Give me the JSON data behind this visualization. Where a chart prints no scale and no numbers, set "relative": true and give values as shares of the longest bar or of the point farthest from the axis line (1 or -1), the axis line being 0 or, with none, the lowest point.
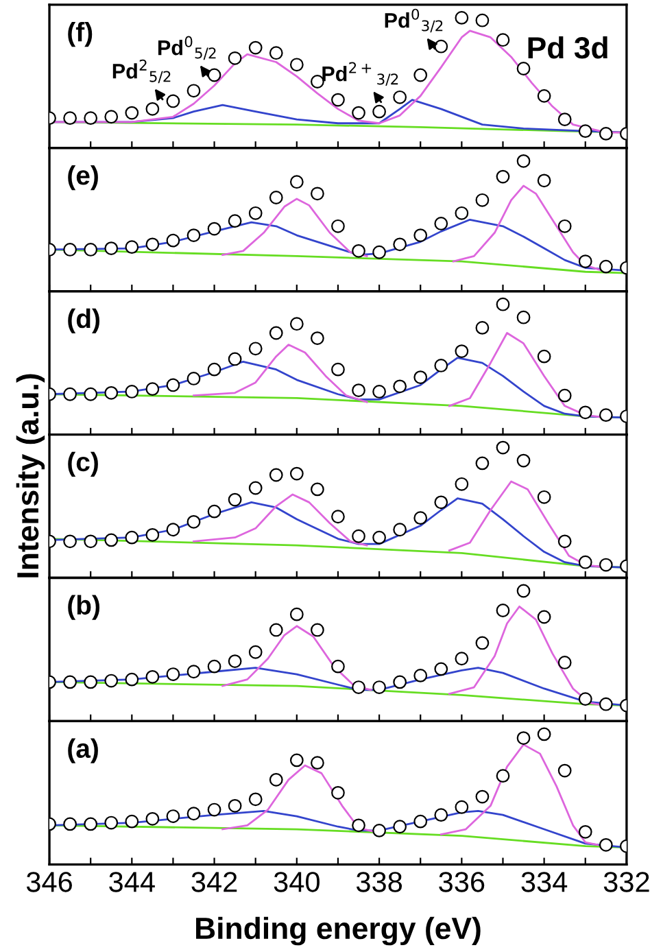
{
  "chart_data": [
    {
      "type": "scatter",
      "relative": true,
      "tick_labels": false,
      "xlim": [
        346,
        332
      ],
      "xticks": [
        346,
        {
          "value": 345,
          "label": null
        },
        344,
        {
          "value": 343,
          "label": null
        },
        342,
        {
          "value": 341,
          "label": null
        },
        340,
        {
          "value": 339,
          "label": null
        },
        338,
        {
          "value": 337,
          "label": null
        },
        336,
        {
          "value": 335,
          "label": null
        },
        334,
        {
          "value": 333,
          "label": null
        },
        332
      ],
      "annotations": [
        "(f)",
        "Pd 3d",
        {
          "text": "Pd$^{2}$$_{5/2}$",
          "x": 343.2,
          "y": 0.35
        },
        {
          "text": "Pd$^{0}$$_{5/2}$",
          "x": 342.1,
          "y": 0.53
        },
        {
          "text": "Pd$^{2+}$$_{3/2}$",
          "x": 337.9,
          "y": 0.33
        },
        {
          "text": "Pd$^{0}$$_{3/2}$",
          "x": 336.6,
          "y": 0.74
        }
      ],
      "x": [
        346,
        345.5,
        345,
        344.5,
        344,
        343.5,
        343,
        342.5,
        342,
        341.5,
        341,
        340.5,
        340,
        339.5,
        339,
        338.5,
        338,
        337.5,
        337,
        336.5,
        336,
        335.5,
        335,
        334.5,
        334,
        333.5,
        333,
        332.5,
        332
      ],
      "series": [
        {
          "marker": "circle",
          "color": "#000000",
          "values": [
            0.23,
            0.23,
            0.23,
            0.24,
            0.27,
            0.3,
            0.36,
            0.44,
            0.56,
            0.69,
            0.77,
            0.73,
            0.64,
            0.51,
            0.37,
            0.27,
            0.28,
            0.39,
            0.56,
            0.78,
            1.0,
            0.98,
            0.83,
            0.61,
            0.4,
            0.22,
            0.13,
            0.11,
            0.11
          ]
        },
        {
          "type": "line",
          "color": "#66dd22",
          "x": [
            346,
            340,
            337,
            333.5,
            332
          ],
          "values": [
            0.2,
            0.18,
            0.16,
            0.13,
            0.12
          ]
        },
        {
          "type": "line",
          "color": "#3344cc",
          "x": [
            346,
            344,
            343,
            342.5,
            341.8,
            341,
            340,
            339,
            338,
            337.5,
            337.2,
            336.5,
            335.5,
            334.5,
            333,
            332
          ],
          "values": [
            0.2,
            0.2,
            0.23,
            0.28,
            0.33,
            0.28,
            0.22,
            0.19,
            0.19,
            0.3,
            0.37,
            0.3,
            0.18,
            0.15,
            0.13,
            0.12
          ]
        },
        {
          "type": "line",
          "color": "#dd66dd",
          "x": [
            346,
            344,
            343,
            342.5,
            342,
            341.5,
            341.2,
            340.5,
            340,
            339.5,
            339,
            338.5,
            338,
            337.5,
            337,
            336.5,
            336,
            335.8,
            335.3,
            334.8,
            334.3,
            333.8,
            333.3,
            332.5,
            332
          ],
          "values": [
            0.2,
            0.2,
            0.24,
            0.34,
            0.48,
            0.65,
            0.72,
            0.66,
            0.55,
            0.42,
            0.3,
            0.21,
            0.19,
            0.25,
            0.4,
            0.62,
            0.85,
            0.9,
            0.85,
            0.7,
            0.5,
            0.32,
            0.18,
            0.12,
            0.12
          ]
        }
      ]
    },
    {
      "type": "scatter",
      "relative": true,
      "tick_labels": false,
      "xlim": [
        346,
        332
      ],
      "xticks": [
        346,
        {
          "value": 345,
          "label": null
        },
        344,
        {
          "value": 343,
          "label": null
        },
        342,
        {
          "value": 341,
          "label": null
        },
        340,
        {
          "value": 339,
          "label": null
        },
        338,
        {
          "value": 337,
          "label": null
        },
        336,
        {
          "value": 335,
          "label": null
        },
        334,
        {
          "value": 333,
          "label": null
        },
        332
      ],
      "annotations": [
        "(e)"
      ],
      "x": [
        346,
        345.5,
        345,
        344.5,
        344,
        343.5,
        343,
        342.5,
        342,
        341.5,
        341,
        340.5,
        340,
        339.5,
        339,
        338.5,
        338,
        337.5,
        337,
        336.5,
        336,
        335.5,
        335,
        334.5,
        334,
        333.5,
        333,
        332.5,
        332
      ],
      "series": [
        {
          "marker": "circle",
          "color": "#000000",
          "values": [
            0.32,
            0.32,
            0.32,
            0.33,
            0.34,
            0.36,
            0.39,
            0.43,
            0.48,
            0.54,
            0.6,
            0.72,
            0.84,
            0.75,
            0.5,
            0.31,
            0.3,
            0.36,
            0.43,
            0.52,
            0.6,
            0.7,
            0.88,
            1.0,
            0.85,
            0.5,
            0.23,
            0.19,
            0.18
          ]
        },
        {
          "type": "line",
          "color": "#66dd22",
          "x": [
            346,
            340,
            336,
            333,
            332
          ],
          "values": [
            0.32,
            0.27,
            0.23,
            0.15,
            0.14
          ]
        },
        {
          "type": "line",
          "color": "#3344cc",
          "x": [
            346,
            344,
            343,
            342,
            341.1,
            340.5,
            340,
            339,
            338.5,
            338,
            337,
            336.5,
            335.8,
            335,
            334.5,
            334,
            333.5,
            333,
            332
          ],
          "values": [
            0.32,
            0.33,
            0.38,
            0.46,
            0.53,
            0.5,
            0.43,
            0.33,
            0.28,
            0.29,
            0.38,
            0.46,
            0.55,
            0.5,
            0.42,
            0.33,
            0.24,
            0.18,
            0.16
          ]
        },
        {
          "type": "line",
          "color": "#dd66dd",
          "x": [
            341.8,
            341.3,
            340.8,
            340.3,
            340,
            339.7,
            339.2,
            338.7,
            338.3,
            337.3,
            336.2,
            335.7,
            335.2,
            334.8,
            334.5,
            334.2,
            333.8,
            333.3,
            333,
            332.5
          ],
          "values": [
            0.28,
            0.31,
            0.45,
            0.65,
            0.71,
            0.66,
            0.45,
            0.3,
            0.27,
            null,
            0.23,
            0.27,
            0.45,
            0.7,
            0.81,
            0.75,
            0.55,
            0.3,
            0.2,
            0.15
          ]
        }
      ]
    },
    {
      "type": "scatter",
      "relative": true,
      "tick_labels": false,
      "xlim": [
        346,
        332
      ],
      "xticks": [
        346,
        {
          "value": 345,
          "label": null
        },
        344,
        {
          "value": 343,
          "label": null
        },
        342,
        {
          "value": 341,
          "label": null
        },
        340,
        {
          "value": 339,
          "label": null
        },
        338,
        {
          "value": 337,
          "label": null
        },
        336,
        {
          "value": 335,
          "label": null
        },
        334,
        {
          "value": 333,
          "label": null
        },
        332
      ],
      "annotations": [
        "(d)"
      ],
      "x": [
        346,
        345.5,
        345,
        344.5,
        344,
        343.5,
        343,
        342.5,
        342,
        341.5,
        341,
        340.5,
        340,
        339.5,
        339,
        338.5,
        338,
        337.5,
        337,
        336.5,
        336,
        335.5,
        335,
        334.5,
        334,
        333.5,
        333,
        332.5,
        332
      ],
      "series": [
        {
          "marker": "circle",
          "color": "#000000",
          "values": [
            0.31,
            0.31,
            0.31,
            0.32,
            0.33,
            0.35,
            0.38,
            0.43,
            0.5,
            0.58,
            0.66,
            0.78,
            0.85,
            0.74,
            0.5,
            0.34,
            0.33,
            0.37,
            0.44,
            0.53,
            0.64,
            0.82,
            1.0,
            0.9,
            0.6,
            0.3,
            0.17,
            0.15,
            0.14
          ]
        },
        {
          "type": "line",
          "color": "#66dd22",
          "x": [
            346,
            340,
            336,
            333,
            332
          ],
          "values": [
            0.31,
            0.28,
            0.22,
            0.14,
            0.13
          ]
        },
        {
          "type": "line",
          "color": "#3344cc",
          "x": [
            346,
            344,
            343,
            342,
            341.3,
            340.5,
            340,
            339,
            338.5,
            338,
            337,
            336.5,
            336.1,
            335.5,
            335,
            334.5,
            334,
            333.5,
            333,
            332
          ],
          "values": [
            0.31,
            0.33,
            0.38,
            0.48,
            0.56,
            0.5,
            0.42,
            0.31,
            0.27,
            0.27,
            0.38,
            0.5,
            0.59,
            0.55,
            0.45,
            0.33,
            0.22,
            0.16,
            0.14,
            0.13
          ]
        },
        {
          "type": "line",
          "color": "#dd66dd",
          "x": [
            342.5,
            341.5,
            341,
            340.5,
            340.2,
            339.8,
            339.3,
            338.8,
            338.3,
            337.3,
            336.3,
            335.8,
            335.3,
            334.9,
            334.5,
            334,
            333.5,
            333,
            332.5
          ],
          "values": [
            0.3,
            0.32,
            0.4,
            0.6,
            0.69,
            0.63,
            0.45,
            0.3,
            0.25,
            null,
            0.22,
            0.28,
            0.55,
            0.78,
            0.7,
            0.45,
            0.22,
            0.15,
            0.13
          ]
        }
      ]
    },
    {
      "type": "scatter",
      "relative": true,
      "tick_labels": false,
      "xlim": [
        346,
        332
      ],
      "ylabel": "Intensity (a.u.)",
      "xticks": [
        346,
        {
          "value": 345,
          "label": null
        },
        344,
        {
          "value": 343,
          "label": null
        },
        342,
        {
          "value": 341,
          "label": null
        },
        340,
        {
          "value": 339,
          "label": null
        },
        338,
        {
          "value": 337,
          "label": null
        },
        336,
        {
          "value": 335,
          "label": null
        },
        334,
        {
          "value": 333,
          "label": null
        },
        332
      ],
      "annotations": [
        "(c)"
      ],
      "x": [
        346,
        345.5,
        345,
        344.5,
        344,
        343.5,
        343,
        342.5,
        342,
        341.5,
        341,
        340.5,
        340,
        339.5,
        339,
        338.5,
        338,
        337.5,
        337,
        336.5,
        336,
        335.5,
        335,
        334.5,
        334,
        333.5,
        333,
        332.5,
        332
      ],
      "series": [
        {
          "marker": "circle",
          "color": "#000000",
          "values": [
            0.28,
            0.28,
            0.28,
            0.29,
            0.31,
            0.33,
            0.37,
            0.43,
            0.51,
            0.6,
            0.69,
            0.79,
            0.8,
            0.68,
            0.47,
            0.32,
            0.31,
            0.37,
            0.46,
            0.58,
            0.72,
            0.88,
            1.0,
            0.9,
            0.62,
            0.28,
            0.12,
            0.1,
            0.09
          ]
        },
        {
          "type": "line",
          "color": "#66dd22",
          "x": [
            346,
            340,
            336,
            333,
            332
          ],
          "values": [
            0.3,
            0.25,
            0.19,
            0.09,
            0.08
          ]
        },
        {
          "type": "line",
          "color": "#3344cc",
          "x": [
            346,
            344,
            343,
            342,
            341.1,
            340.5,
            340,
            339,
            338.5,
            338,
            337,
            336.5,
            336.1,
            335.5,
            335,
            334.5,
            334,
            333.5,
            333,
            332
          ],
          "values": [
            0.29,
            0.31,
            0.37,
            0.49,
            0.58,
            0.54,
            0.45,
            0.3,
            0.26,
            0.26,
            0.4,
            0.52,
            0.61,
            0.57,
            0.45,
            0.32,
            0.2,
            0.12,
            0.09,
            0.08
          ]
        },
        {
          "type": "line",
          "color": "#dd66dd",
          "x": [
            342.5,
            341.5,
            341,
            340.5,
            340.1,
            339.7,
            339.2,
            338.7,
            338.3,
            337.3,
            336.3,
            335.8,
            335.3,
            334.8,
            334.4,
            333.9,
            333.4,
            333,
            332.5
          ],
          "values": [
            0.28,
            0.31,
            0.38,
            0.55,
            0.64,
            0.58,
            0.42,
            0.28,
            0.25,
            null,
            0.21,
            0.27,
            0.52,
            0.74,
            0.68,
            0.42,
            0.17,
            0.1,
            0.08
          ]
        }
      ]
    },
    {
      "type": "scatter",
      "relative": true,
      "tick_labels": false,
      "xlim": [
        346,
        332
      ],
      "xticks": [
        346,
        {
          "value": 345,
          "label": null
        },
        344,
        {
          "value": 343,
          "label": null
        },
        342,
        {
          "value": 341,
          "label": null
        },
        340,
        {
          "value": 339,
          "label": null
        },
        338,
        {
          "value": 337,
          "label": null
        },
        336,
        {
          "value": 335,
          "label": null
        },
        334,
        {
          "value": 333,
          "label": null
        },
        332
      ],
      "annotations": [
        "(b)"
      ],
      "x": [
        346,
        345.5,
        345,
        344.5,
        344,
        343.5,
        343,
        342.5,
        342,
        341.5,
        341,
        340.5,
        340,
        339.5,
        339,
        338.5,
        338,
        337.5,
        337,
        336.5,
        336,
        335.5,
        335,
        334.5,
        334,
        333.5,
        333,
        332.5,
        332
      ],
      "series": [
        {
          "marker": "circle",
          "color": "#000000",
          "values": [
            0.3,
            0.3,
            0.3,
            0.31,
            0.32,
            0.34,
            0.36,
            0.38,
            0.42,
            0.46,
            0.53,
            0.7,
            0.82,
            0.7,
            0.42,
            0.26,
            0.26,
            0.3,
            0.35,
            0.4,
            0.48,
            0.6,
            0.85,
            1.0,
            0.8,
            0.45,
            0.17,
            0.13,
            0.12
          ]
        },
        {
          "type": "line",
          "color": "#66dd22",
          "x": [
            346,
            340,
            336,
            333,
            332
          ],
          "values": [
            0.3,
            0.27,
            0.2,
            0.13,
            0.12
          ]
        },
        {
          "type": "line",
          "color": "#3344cc",
          "x": [
            346,
            344,
            343,
            342,
            341,
            340,
            339,
            338.5,
            338,
            337,
            336,
            335.6,
            335,
            334,
            333,
            332
          ],
          "values": [
            0.3,
            0.32,
            0.35,
            0.38,
            0.41,
            0.36,
            0.28,
            0.24,
            0.24,
            0.32,
            0.39,
            0.41,
            0.37,
            0.25,
            0.15,
            0.12
          ]
        },
        {
          "type": "line",
          "color": "#dd66dd",
          "x": [
            341.8,
            341.2,
            340.7,
            340.3,
            340,
            339.6,
            339.1,
            338.6,
            338.2,
            337.3,
            336.3,
            335.7,
            335.2,
            334.9,
            334.6,
            334.2,
            333.8,
            333.3,
            332.9,
            332.5
          ],
          "values": [
            0.27,
            0.32,
            0.48,
            0.66,
            0.73,
            0.65,
            0.42,
            0.27,
            0.24,
            null,
            0.21,
            0.26,
            0.5,
            0.75,
            0.88,
            0.78,
            0.52,
            0.25,
            0.14,
            0.12
          ]
        }
      ]
    },
    {
      "type": "scatter",
      "relative": true,
      "tick_labels": "x",
      "xlim": [
        346,
        332
      ],
      "xlabel": "Binding energy (eV)",
      "xticks": [
        346,
        {
          "value": 345,
          "label": null
        },
        344,
        {
          "value": 343,
          "label": null
        },
        342,
        {
          "value": 341,
          "label": null
        },
        340,
        {
          "value": 339,
          "label": null
        },
        338,
        {
          "value": 337,
          "label": null
        },
        336,
        {
          "value": 335,
          "label": null
        },
        334,
        {
          "value": 333,
          "label": null
        },
        332
      ],
      "annotations": [
        "(a)"
      ],
      "x": [
        346,
        345.5,
        345,
        344.5,
        344,
        343.5,
        343,
        342.5,
        342,
        341.5,
        341,
        340.5,
        340,
        339.5,
        339,
        338.5,
        338,
        337.5,
        337,
        336.5,
        336,
        335.5,
        335,
        334.5,
        334,
        333.5,
        333,
        332.5,
        332
      ],
      "series": [
        {
          "marker": "circle",
          "color": "#000000",
          "values": [
            0.31,
            0.31,
            0.31,
            0.32,
            0.33,
            0.35,
            0.37,
            0.39,
            0.42,
            0.45,
            0.5,
            0.65,
            0.8,
            0.78,
            0.55,
            0.3,
            0.26,
            0.29,
            0.33,
            0.38,
            0.44,
            0.52,
            0.68,
            0.97,
            1.0,
            0.72,
            0.25,
            0.15,
            0.14
          ]
        },
        {
          "type": "line",
          "color": "#66dd22",
          "x": [
            346,
            340,
            336,
            333,
            332
          ],
          "values": [
            0.3,
            0.27,
            0.22,
            0.14,
            0.13
          ]
        },
        {
          "type": "line",
          "color": "#3344cc",
          "x": [
            346,
            344,
            343,
            342,
            340.8,
            340,
            339,
            338.5,
            338,
            337,
            336,
            335.6,
            335,
            334,
            333,
            332
          ],
          "values": [
            0.3,
            0.32,
            0.35,
            0.38,
            0.41,
            0.37,
            0.29,
            0.26,
            0.26,
            0.33,
            0.4,
            0.41,
            0.38,
            0.27,
            0.16,
            0.13
          ]
        },
        {
          "type": "line",
          "color": "#dd66dd",
          "x": [
            341.8,
            341.2,
            340.7,
            340.2,
            339.8,
            339.4,
            338.9,
            338.5,
            338.1,
            337.3,
            336.5,
            335.9,
            335.3,
            334.9,
            334.5,
            334.1,
            333.7,
            333.3,
            333,
            332.7
          ],
          "values": [
            0.27,
            0.3,
            0.42,
            0.65,
            0.76,
            0.7,
            0.45,
            0.28,
            0.25,
            null,
            0.23,
            0.27,
            0.45,
            0.75,
            0.92,
            0.85,
            0.6,
            0.3,
            0.17,
            0.15
          ]
        }
      ]
    }
  ]
}
